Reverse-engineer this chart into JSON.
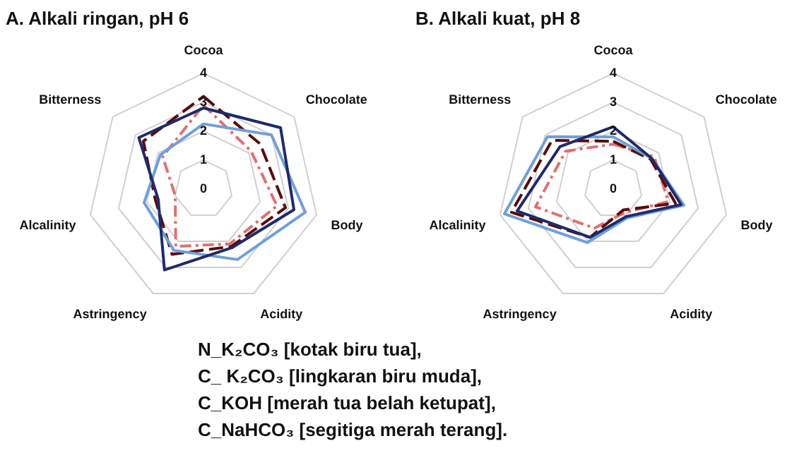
{
  "chart_data": [
    {
      "type": "radar",
      "title": "A. Alkali ringan, pH 6",
      "categories": [
        "Cocoa",
        "Chocolate",
        "Body",
        "Acidity",
        "Astringency",
        "Alcalinity",
        "Bitterness"
      ],
      "ylim": [
        0,
        4
      ],
      "yticks": [
        0,
        1,
        2,
        3,
        4
      ],
      "grid": true,
      "legend": false,
      "marker": "none",
      "series": [
        {
          "color": "#1f2a6b",
          "line_style": "solid",
          "values": [
            2.8,
            3.4,
            3.2,
            2.25,
            3.1,
            1.6,
            2.85
          ]
        },
        {
          "color": "#6fa0d8",
          "line_style": "solid",
          "values": [
            2.25,
            3.0,
            3.6,
            2.7,
            2.35,
            2.1,
            1.9
          ]
        },
        {
          "color": "#5a0a0a",
          "line_style": "dashed",
          "values": [
            3.2,
            2.5,
            2.9,
            2.2,
            2.5,
            1.7,
            2.65
          ]
        },
        {
          "color": "#e07070",
          "line_style": "dashdot",
          "values": [
            2.9,
            2.1,
            2.6,
            2.1,
            2.2,
            1.0,
            1.8
          ]
        }
      ]
    },
    {
      "type": "radar",
      "title": "B. Alkali kuat, pH 8",
      "categories": [
        "Cocoa",
        "Chocolate",
        "Body",
        "Acidity",
        "Astringency",
        "Alcalinity",
        "Bitterness"
      ],
      "ylim": [
        0,
        4
      ],
      "yticks": [
        0,
        1,
        2,
        3,
        4
      ],
      "grid": true,
      "legend": false,
      "marker": "none",
      "series": [
        {
          "color": "#1f2a6b",
          "line_style": "solid",
          "values": [
            2.15,
            1.7,
            2.4,
            1.05,
            1.85,
            3.4,
            2.35
          ]
        },
        {
          "color": "#6fa0d8",
          "line_style": "solid",
          "values": [
            1.8,
            1.7,
            2.5,
            1.1,
            2.05,
            3.85,
            2.9
          ]
        },
        {
          "color": "#5a0a0a",
          "line_style": "dashed",
          "values": [
            1.65,
            1.65,
            2.2,
            0.8,
            1.85,
            3.6,
            2.7
          ]
        },
        {
          "color": "#e07070",
          "line_style": "dashdot",
          "values": [
            1.55,
            1.8,
            1.95,
            0.9,
            1.5,
            2.75,
            2.1
          ]
        }
      ]
    },
    {
      "type": "other",
      "annotations": [
        "N_K₂CO₃ [kotak biru tua],",
        "C_ K₂CO₃ [lingkaran biru muda],",
        "C_KOH [merah tua belah ketupat],",
        "C_NaHCO₃ [segitiga merah terang]."
      ]
    }
  ]
}
